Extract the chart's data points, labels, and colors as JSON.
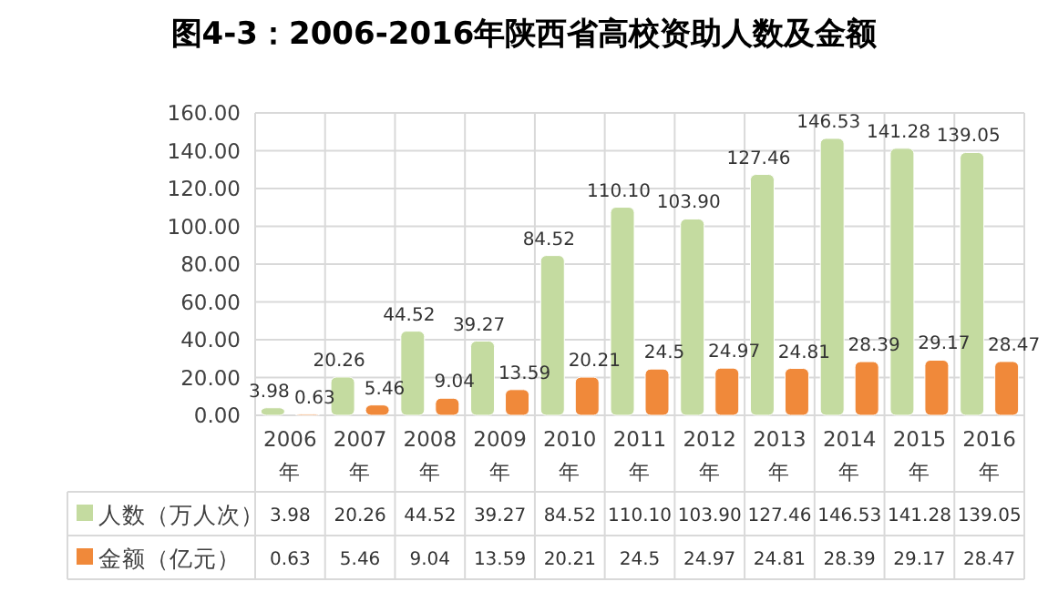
{
  "chart_data": {
    "type": "bar",
    "title": "图4-3：2006-2016年陕西省高校资助人数及金额",
    "categories": [
      "2006年",
      "2007年",
      "2008年",
      "2009年",
      "2010年",
      "2011年",
      "2012年",
      "2013年",
      "2014年",
      "2015年",
      "2016年"
    ],
    "series": [
      {
        "name": "人数（万人次）",
        "color": "#c4dba0",
        "values": [
          3.98,
          20.26,
          44.52,
          39.27,
          84.52,
          110.1,
          103.9,
          127.46,
          146.53,
          141.28,
          139.05
        ],
        "value_labels": [
          "3.98",
          "20.26",
          "44.52",
          "39.27",
          "84.52",
          "110.10",
          "103.90",
          "127.46",
          "146.53",
          "141.28",
          "139.05"
        ]
      },
      {
        "name": "金额（亿元）",
        "color": "#f0893a",
        "values": [
          0.63,
          5.46,
          9.04,
          13.59,
          20.21,
          24.5,
          24.97,
          24.81,
          28.39,
          29.17,
          28.47
        ],
        "value_labels": [
          "0.63",
          "5.46",
          "9.04",
          "13.59",
          "20.21",
          "24.5",
          "24.97",
          "24.81",
          "28.39",
          "29.17",
          "28.47"
        ]
      }
    ],
    "ylim": [
      0,
      160
    ],
    "yticks": [
      {
        "value": 0,
        "label": "0.00"
      },
      {
        "value": 20,
        "label": "20.00"
      },
      {
        "value": 40,
        "label": "40.00"
      },
      {
        "value": 60,
        "label": "60.00"
      },
      {
        "value": 80,
        "label": "80.00"
      },
      {
        "value": 100,
        "label": "100.00"
      },
      {
        "value": 120,
        "label": "120.00"
      },
      {
        "value": 140,
        "label": "140.00"
      },
      {
        "value": 160,
        "label": "160.00"
      }
    ],
    "grid": true,
    "legend": "bottom"
  }
}
